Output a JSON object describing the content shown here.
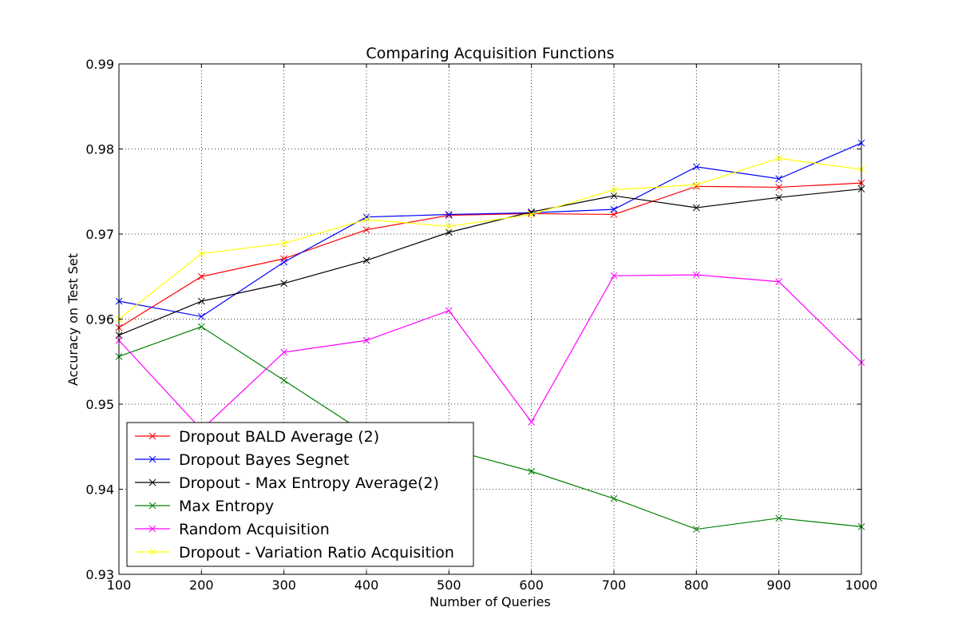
{
  "chart_data": {
    "type": "line",
    "title": "Comparing Acquisition Functions",
    "xlabel": "Number of Queries",
    "ylabel": "Accuracy on Test Set",
    "xlim": [
      100,
      1000
    ],
    "ylim": [
      0.93,
      0.99
    ],
    "xticks": [
      "100",
      "200",
      "300",
      "400",
      "500",
      "600",
      "700",
      "800",
      "900",
      "1000"
    ],
    "yticks": [
      "0.93",
      "0.94",
      "0.95",
      "0.96",
      "0.97",
      "0.98",
      "0.99"
    ],
    "grid": true,
    "legend_position": "lower-left",
    "x": [
      100,
      200,
      300,
      400,
      500,
      600,
      700,
      800,
      900,
      1000
    ],
    "series": [
      {
        "name": "Dropout BALD Average (2)",
        "color": "#ff0000",
        "marker": "x",
        "values": [
          0.959,
          0.965,
          0.9671,
          0.9705,
          0.9722,
          0.9724,
          0.9723,
          0.9756,
          0.9755,
          0.976
        ]
      },
      {
        "name": "Dropout Bayes Segnet",
        "color": "#0000ff",
        "marker": "x",
        "values": [
          0.9621,
          0.9603,
          0.9667,
          0.972,
          0.9723,
          0.9725,
          0.9729,
          0.9779,
          0.9765,
          0.9807
        ]
      },
      {
        "name": "Dropout - Max Entropy Average(2)",
        "color": "#000000",
        "marker": "x",
        "values": [
          0.9581,
          0.9621,
          0.9642,
          0.9669,
          0.9702,
          0.9726,
          0.9745,
          0.9731,
          0.9743,
          0.9753
        ]
      },
      {
        "name": "Max Entropy",
        "color": "#008000",
        "marker": "x",
        "values": [
          0.9556,
          0.9591,
          0.9528,
          0.9465,
          0.9447,
          0.9421,
          0.9389,
          0.9353,
          0.9366,
          0.9356
        ]
      },
      {
        "name": "Random Acquisition",
        "color": "#ff00ff",
        "marker": "x",
        "values": [
          0.9575,
          0.947,
          0.9561,
          0.9575,
          0.961,
          0.9479,
          0.9651,
          0.9652,
          0.9644,
          0.9549
        ]
      },
      {
        "name": "Dropout - Variation Ratio Acquisition",
        "color": "#ffff00",
        "marker": "x",
        "values": [
          0.96,
          0.9677,
          0.9689,
          0.9717,
          0.9709,
          0.9723,
          0.9752,
          0.9758,
          0.9789,
          0.9776
        ]
      }
    ]
  }
}
